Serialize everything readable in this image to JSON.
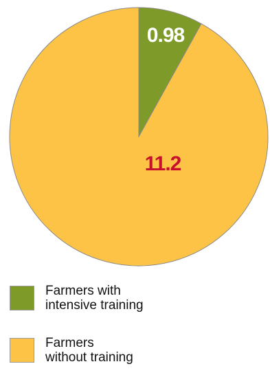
{
  "chart_data": {
    "type": "pie",
    "title": "",
    "slices": [
      {
        "name": "Farmers with intensive training",
        "value": 0.98,
        "label": "0.98",
        "color": "#7e9a28",
        "label_color": "#ffffff"
      },
      {
        "name": "Farmers without training",
        "value": 11.2,
        "label": "11.2",
        "color": "#fcc346",
        "label_color": "#c8102e"
      }
    ],
    "start_angle_deg": 0,
    "direction": "clockwise",
    "legend_position": "bottom-left"
  },
  "legend": {
    "items": [
      {
        "label_line1": "Farmers with",
        "label_line2": "intensive training",
        "color": "#7e9a28"
      },
      {
        "label_line1": "Farmers",
        "label_line2": "without training",
        "color": "#fcc346"
      }
    ]
  }
}
